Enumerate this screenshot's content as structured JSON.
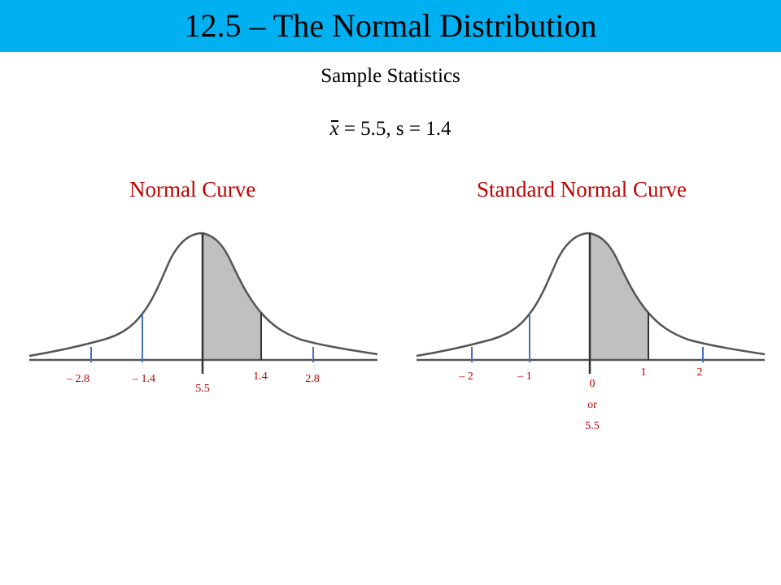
{
  "slide": {
    "title": "12.5 – The Normal Distribution",
    "subtitle": "Sample Statistics",
    "stats": {
      "xbar_symbol": "x",
      "rest": " = 5.5, s = 1.4"
    }
  },
  "colors": {
    "title_bar": "#00b0f0",
    "label_red": "#c00000",
    "tick_blue": "#4472c4",
    "shade_gray": "#c0c0c0"
  },
  "left_panel": {
    "label": "Normal Curve",
    "tick_labels": [
      "– 2.8",
      "– 1.4",
      "5.5",
      "1.4",
      "2.8"
    ],
    "shaded_region": "from mean to +1 standard deviation"
  },
  "right_panel": {
    "label": "Standard Normal Curve",
    "tick_labels": [
      "– 2",
      "– 1",
      "0",
      "or",
      "5.5",
      "1",
      "2"
    ],
    "shaded_region": "from 0 to 1"
  }
}
